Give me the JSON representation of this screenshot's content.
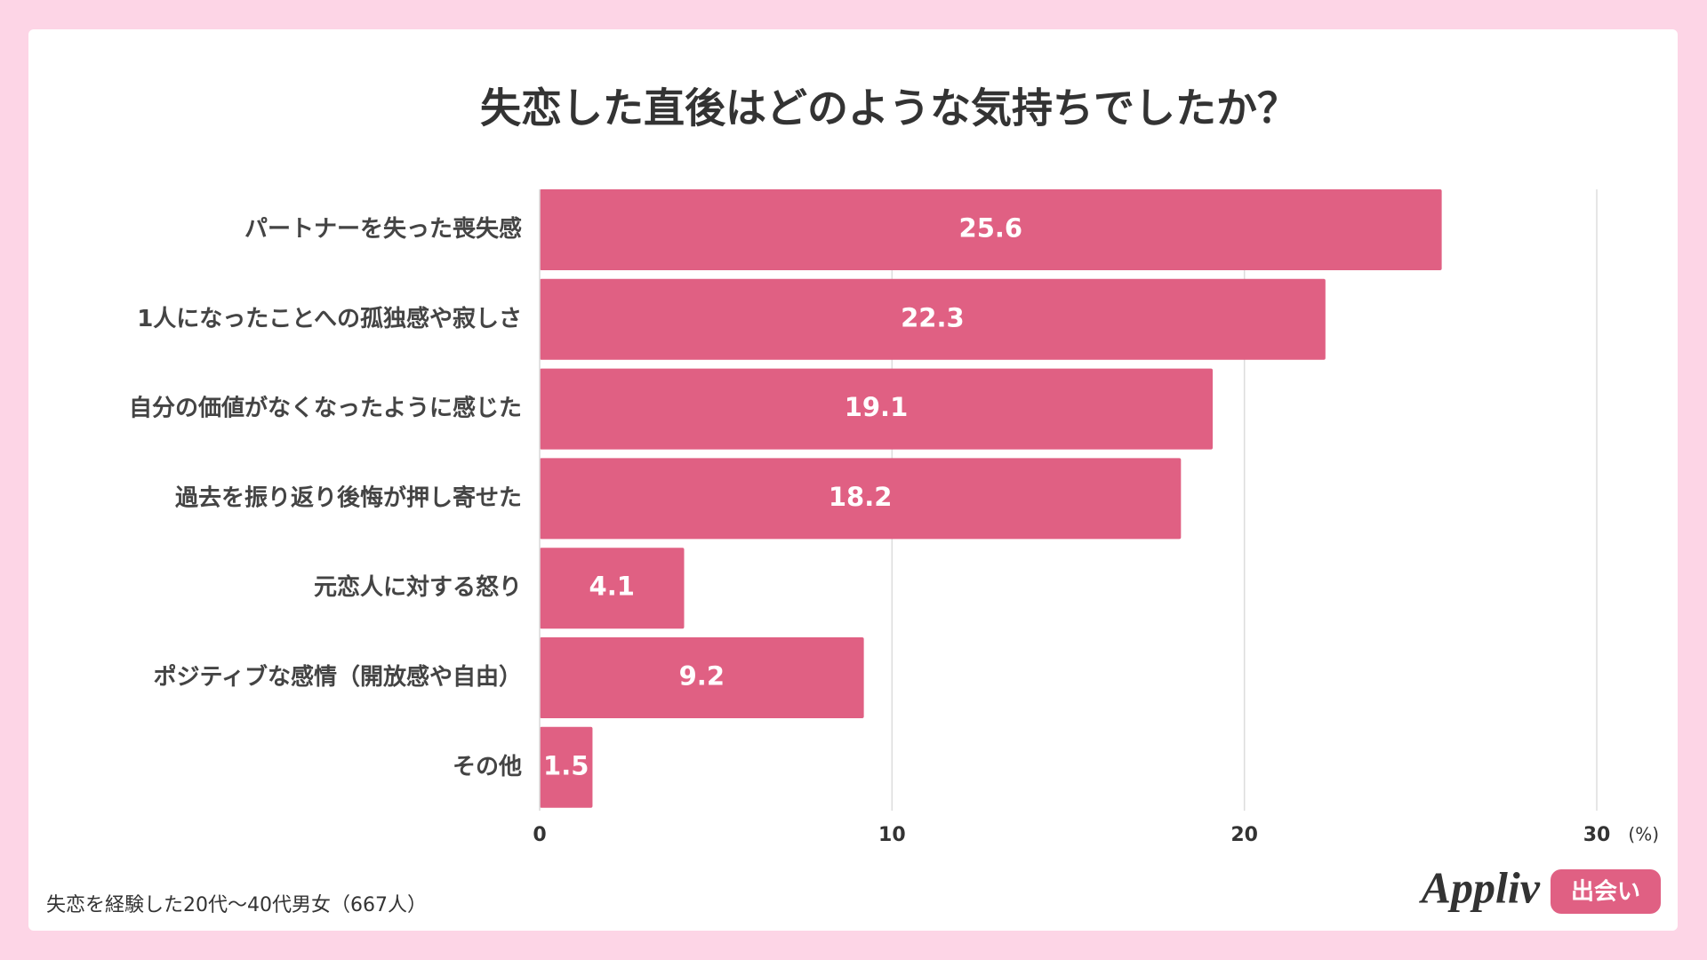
{
  "chart_data": {
    "type": "bar",
    "orientation": "horizontal",
    "title": "失恋した直後はどのような気持ちでしたか？",
    "categories": [
      "パートナーを失った喪失感",
      "1人になったことへの孤独感や寂しさ",
      "自分の価値がなくなったように感じた",
      "過去を振り返り後悔が押し寄せた",
      "元恋人に対する怒り",
      "ポジティブな感情（開放感や自由）",
      "その他"
    ],
    "values": [
      25.6,
      22.3,
      19.1,
      18.2,
      4.1,
      9.2,
      1.5
    ],
    "color": "#e06083",
    "xlim": [
      0,
      30
    ],
    "xticks": [
      0,
      10,
      20,
      30
    ],
    "x_unit": "(%)",
    "grid": true
  },
  "footer": {
    "note": "失恋を経験した20代〜40代男女（667人）",
    "logo": "Appliv",
    "logo_badge": "出会い"
  }
}
